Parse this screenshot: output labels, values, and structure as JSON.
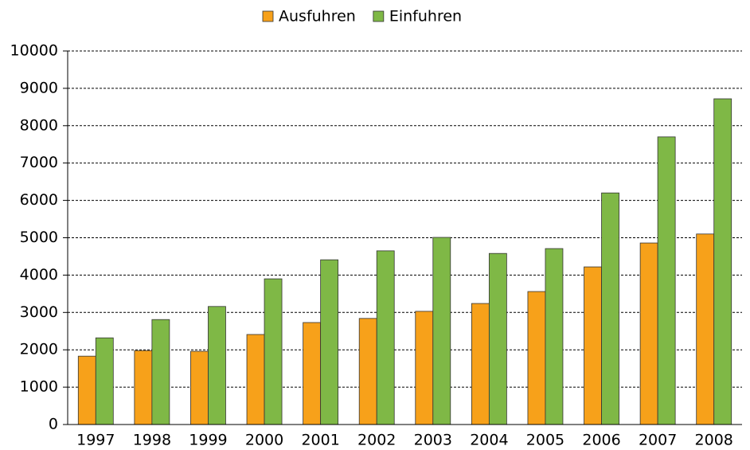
{
  "chart_data": {
    "type": "bar",
    "categories": [
      "1997",
      "1998",
      "1999",
      "2000",
      "2001",
      "2002",
      "2003",
      "2004",
      "2005",
      "2006",
      "2007",
      "2008"
    ],
    "series": [
      {
        "name": "Ausfuhren",
        "color": "#f7a11a",
        "values": [
          1830,
          1980,
          1960,
          2410,
          2730,
          2840,
          3030,
          3240,
          3560,
          4220,
          4860,
          5100
        ]
      },
      {
        "name": "Einfuhren",
        "color": "#7fb846",
        "values": [
          2320,
          2810,
          3160,
          3900,
          4410,
          4650,
          5010,
          4580,
          4710,
          6200,
          7700,
          8720
        ]
      }
    ],
    "ylim": [
      0,
      10000
    ],
    "yticks": [
      0,
      1000,
      2000,
      3000,
      4000,
      5000,
      6000,
      7000,
      8000,
      9000,
      10000
    ],
    "grid": true,
    "legend": "top"
  }
}
